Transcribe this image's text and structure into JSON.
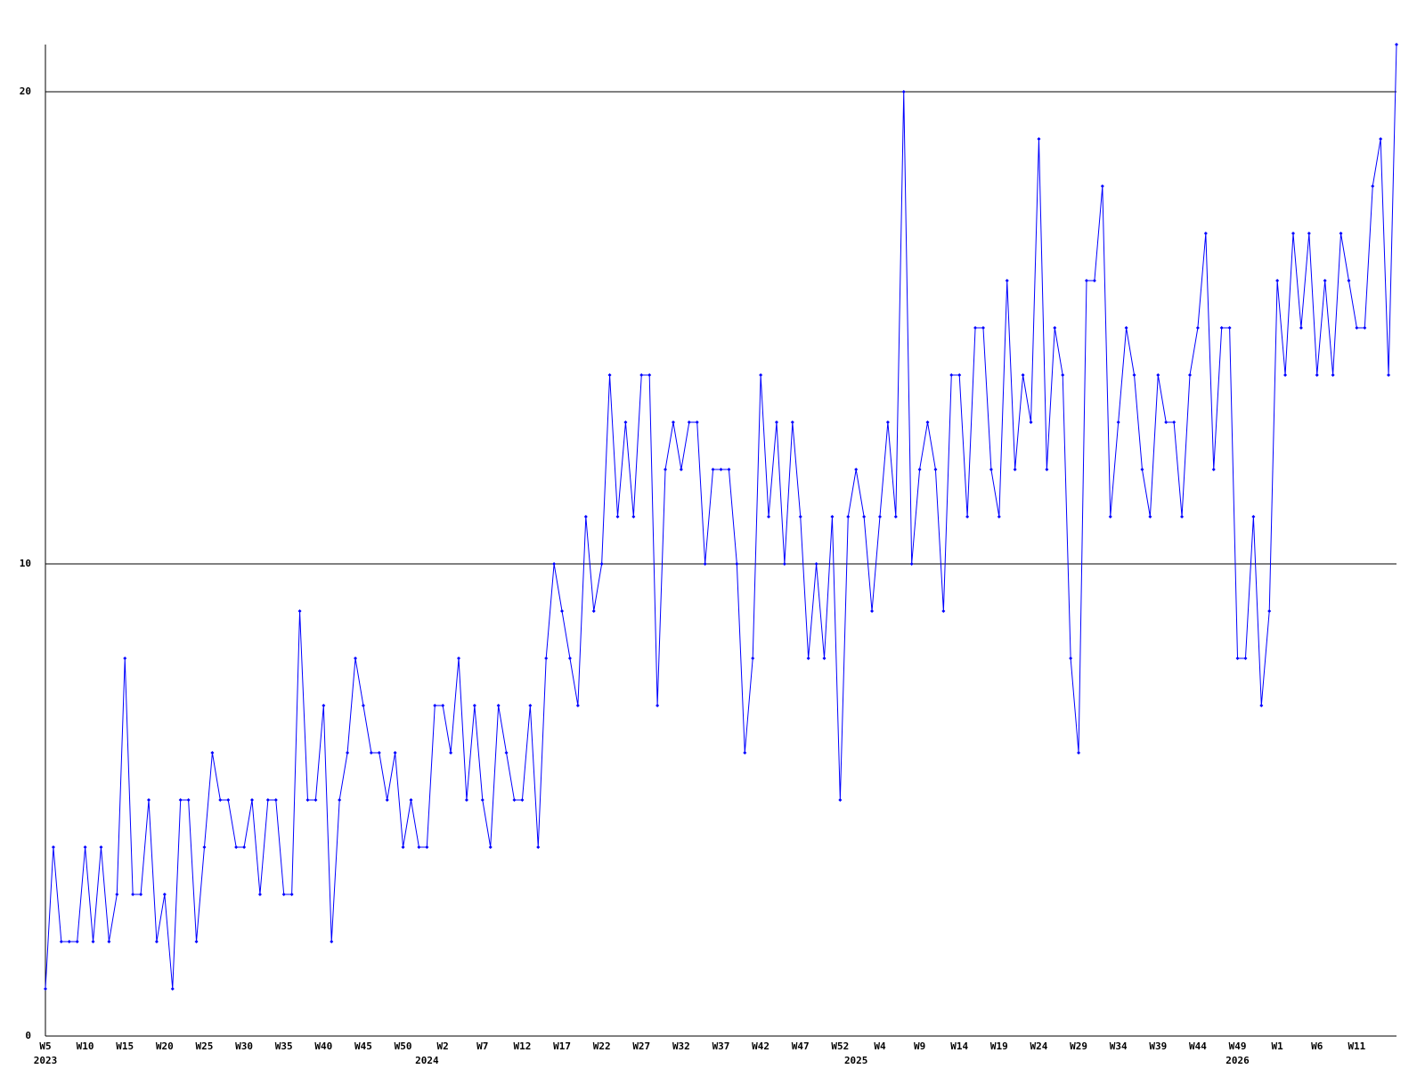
{
  "chart_data": {
    "type": "line",
    "categories": [
      "W5",
      null,
      null,
      null,
      null,
      "W10",
      null,
      null,
      null,
      null,
      "W15",
      null,
      null,
      null,
      null,
      "W20",
      null,
      null,
      null,
      null,
      "W25",
      null,
      null,
      null,
      null,
      "W30",
      null,
      null,
      null,
      null,
      "W35",
      null,
      null,
      null,
      null,
      "W40",
      null,
      null,
      null,
      null,
      "W45",
      null,
      null,
      null,
      null,
      "W50",
      null,
      null,
      null,
      null,
      "W2",
      null,
      null,
      null,
      null,
      "W7",
      null,
      null,
      null,
      null,
      "W12",
      null,
      null,
      null,
      null,
      "W17",
      null,
      null,
      null,
      null,
      "W22",
      null,
      null,
      null,
      null,
      "W27",
      null,
      null,
      null,
      null,
      "W32",
      null,
      null,
      null,
      null,
      "W37",
      null,
      null,
      null,
      null,
      "W42",
      null,
      null,
      null,
      null,
      "W47",
      null,
      null,
      null,
      null,
      "W52",
      null,
      null,
      null,
      null,
      "W4",
      null,
      null,
      null,
      null,
      "W9",
      null,
      null,
      null,
      null,
      "W14",
      null,
      null,
      null,
      null,
      "W19",
      null,
      null,
      null,
      null,
      "W24",
      null,
      null,
      null,
      null,
      "W29",
      null,
      null,
      null,
      null,
      "W34",
      null,
      null,
      null,
      null,
      "W39",
      null,
      null,
      null,
      null,
      "W44",
      null,
      null,
      null,
      null,
      "W49",
      null,
      null,
      null,
      null,
      "W1",
      null,
      null,
      null,
      null,
      "W6",
      null,
      null,
      null,
      null,
      "W11",
      null,
      null,
      null,
      null,
      null
    ],
    "years": [
      "2023",
      null,
      null,
      null,
      null,
      null,
      null,
      null,
      null,
      null,
      null,
      null,
      null,
      null,
      null,
      null,
      null,
      null,
      null,
      null,
      null,
      null,
      null,
      null,
      null,
      null,
      null,
      null,
      null,
      null,
      null,
      null,
      null,
      null,
      null,
      null,
      null,
      null,
      null,
      null,
      null,
      null,
      null,
      null,
      null,
      null,
      null,
      null,
      "2024",
      null,
      null,
      null,
      null,
      null,
      null,
      null,
      null,
      null,
      null,
      null,
      null,
      null,
      null,
      null,
      null,
      null,
      null,
      null,
      null,
      null,
      null,
      null,
      null,
      null,
      null,
      null,
      null,
      null,
      null,
      null,
      null,
      null,
      null,
      null,
      null,
      null,
      null,
      null,
      null,
      null,
      null,
      null,
      null,
      null,
      null,
      null,
      null,
      null,
      null,
      null,
      null,
      null,
      "2025",
      null,
      null,
      null,
      null,
      null,
      null,
      null,
      null,
      null,
      null,
      null,
      null,
      null,
      null,
      null,
      null,
      null,
      null,
      null,
      null,
      null,
      null,
      null,
      null,
      null,
      null,
      null,
      null,
      null,
      null,
      null,
      null,
      null,
      null,
      null,
      null,
      null,
      null,
      null,
      null,
      null,
      null,
      null,
      null,
      null,
      null,
      null,
      "2026",
      null,
      null,
      null,
      null,
      null,
      null,
      null,
      null,
      null,
      null,
      null,
      null,
      null,
      null,
      null
    ],
    "series": [
      {
        "color": "#0000ff",
        "values": [
          1,
          4,
          2,
          2,
          2,
          4,
          2,
          4,
          2,
          3,
          8,
          3,
          3,
          5,
          2,
          3,
          1,
          5,
          5,
          2,
          4,
          6,
          5,
          5,
          4,
          4,
          5,
          3,
          5,
          5,
          3,
          3,
          9,
          5,
          5,
          7,
          2,
          5,
          6,
          8,
          7,
          6,
          6,
          5,
          6,
          4,
          5,
          4,
          4,
          7,
          7,
          6,
          8,
          5,
          7,
          5,
          4,
          7,
          6,
          5,
          5,
          7,
          4,
          8,
          10,
          9,
          8,
          7,
          11,
          9,
          10,
          14,
          11,
          13,
          11,
          14,
          14,
          7,
          12,
          13,
          12,
          13,
          13,
          10,
          12,
          12,
          12,
          10,
          6,
          8,
          14,
          11,
          13,
          10,
          13,
          11,
          8,
          10,
          8,
          11,
          5,
          11,
          12,
          11,
          9,
          11,
          13,
          11,
          20,
          10,
          12,
          13,
          12,
          9,
          14,
          14,
          11,
          15,
          15,
          12,
          11,
          16,
          12,
          14,
          13,
          19,
          12,
          15,
          14,
          8,
          6,
          16,
          16,
          18,
          11,
          13,
          15,
          14,
          12,
          11,
          14,
          13,
          13,
          11,
          14,
          15,
          17,
          12,
          15,
          15,
          8,
          8,
          11,
          7,
          9,
          16,
          14,
          17,
          15,
          17,
          14,
          16,
          14,
          17,
          16,
          15,
          15,
          18,
          19,
          14,
          21
        ]
      }
    ],
    "ylim": [
      0,
      21
    ],
    "yticks": [
      0,
      10,
      20
    ],
    "grid": true
  }
}
